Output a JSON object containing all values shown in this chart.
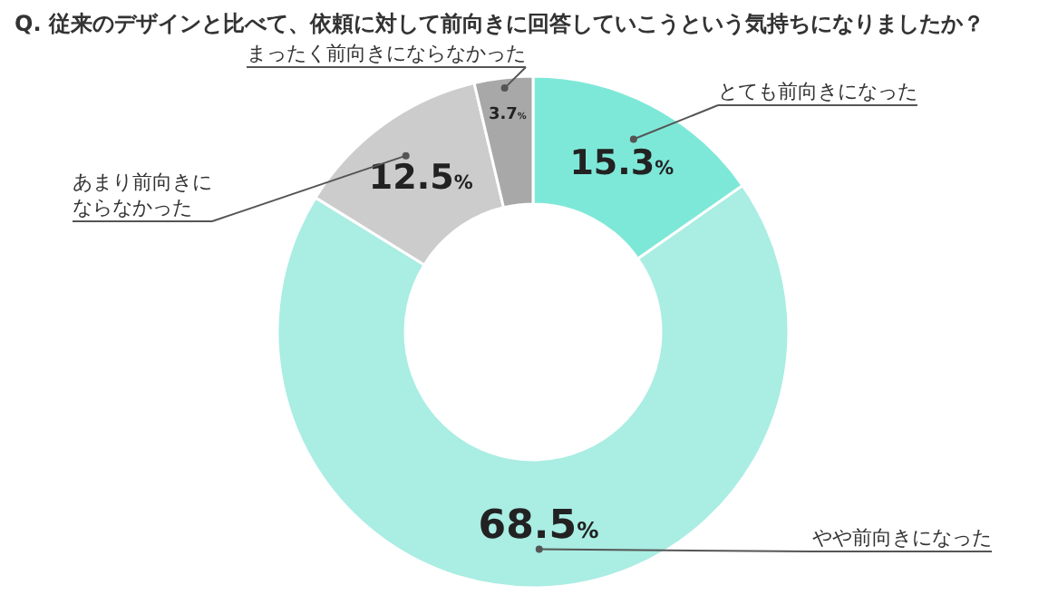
{
  "chart_data": {
    "type": "donut",
    "title": "Q. 従来のデザインと比べて、依頼に対して前向きに回答していこうという気持ちになりましたか？",
    "categories": [
      "とても前向きになった",
      "やや前向きになった",
      "あまり前向きにならなかった",
      "まったく前向きにならなかった"
    ],
    "values": [
      15.3,
      68.5,
      12.5,
      3.7
    ],
    "colors": [
      "#7ee8d8",
      "#a9ede3",
      "#cccccc",
      "#a8a8a8"
    ],
    "value_labels": [
      "15.3%",
      "68.5%",
      "12.5%",
      "3.7%"
    ]
  }
}
